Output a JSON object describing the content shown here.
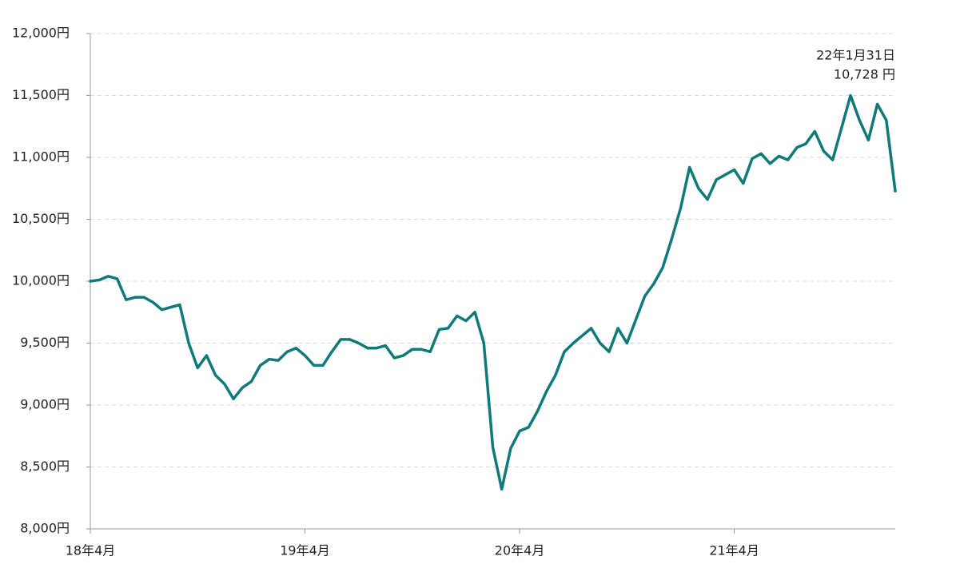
{
  "chart_data": {
    "type": "line",
    "color": "#0f7a78",
    "grid": true,
    "annotation": {
      "date": "22年1月31日",
      "value": "10,728 円"
    },
    "ylim": [
      8000,
      12000
    ],
    "yticks": [
      {
        "value": 8000,
        "label": "8,000円"
      },
      {
        "value": 8500,
        "label": "8,500円"
      },
      {
        "value": 9000,
        "label": "9,000円"
      },
      {
        "value": 9500,
        "label": "9,500円"
      },
      {
        "value": 10000,
        "label": "10,000円"
      },
      {
        "value": 10500,
        "label": "10,500円"
      },
      {
        "value": 11000,
        "label": "11,000円"
      },
      {
        "value": 11500,
        "label": "11,500円"
      },
      {
        "value": 12000,
        "label": "12,000円"
      }
    ],
    "categories": [
      "18年4月",
      null,
      null,
      null,
      null,
      null,
      null,
      null,
      null,
      null,
      null,
      null,
      null,
      null,
      null,
      null,
      null,
      null,
      null,
      null,
      null,
      null,
      null,
      null,
      "19年4月",
      null,
      null,
      null,
      null,
      null,
      null,
      null,
      null,
      null,
      null,
      null,
      null,
      null,
      null,
      null,
      null,
      null,
      null,
      null,
      null,
      null,
      null,
      null,
      "20年4月",
      null,
      null,
      null,
      null,
      null,
      null,
      null,
      null,
      null,
      null,
      null,
      null,
      null,
      null,
      null,
      null,
      null,
      null,
      null,
      null,
      null,
      null,
      null,
      "21年4月",
      null,
      null,
      null,
      null,
      null,
      null,
      null,
      null,
      null,
      null,
      null,
      null,
      null,
      null,
      null,
      null,
      null,
      null
    ],
    "values": [
      10000,
      10010,
      10040,
      10020,
      9850,
      9870,
      9870,
      9830,
      9770,
      9790,
      9810,
      9500,
      9300,
      9400,
      9240,
      9170,
      9050,
      9140,
      9190,
      9320,
      9370,
      9360,
      9430,
      9460,
      9400,
      9320,
      9320,
      9430,
      9530,
      9530,
      9500,
      9460,
      9460,
      9480,
      9380,
      9400,
      9450,
      9450,
      9430,
      9610,
      9620,
      9720,
      9680,
      9750,
      9500,
      8660,
      8320,
      8650,
      8790,
      8820,
      8950,
      9110,
      9240,
      9430,
      9500,
      9560,
      9620,
      9500,
      9430,
      9620,
      9500,
      9690,
      9880,
      9980,
      10110,
      10340,
      10590,
      10920,
      10750,
      10660,
      10820,
      10860,
      10900,
      10790,
      10990,
      11030,
      10950,
      11010,
      10980,
      11080,
      11110,
      11210,
      11050,
      10980,
      11240,
      11500,
      11300,
      11140,
      11430,
      11300,
      10728
    ]
  }
}
